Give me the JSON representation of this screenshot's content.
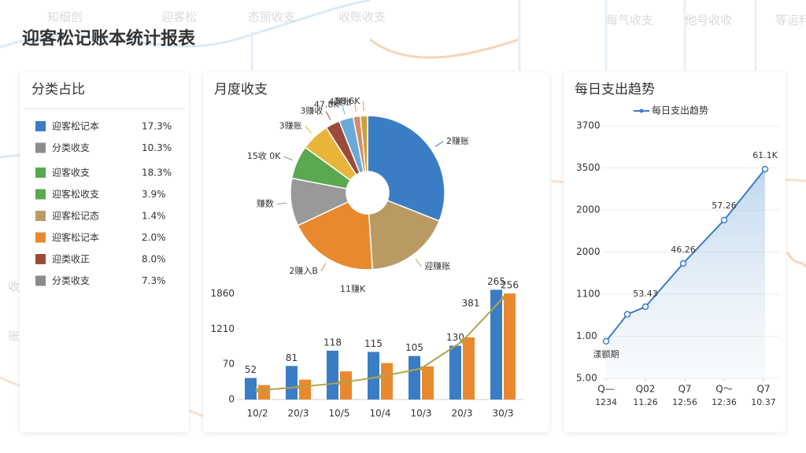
{
  "title": "迎客松记账本统计报表",
  "background_labels": [
    "知细创",
    "迎客松",
    "态丽收支",
    "收账收支",
    "每气收支",
    "他号收收",
    "等运料",
    "收务",
    "账务"
  ],
  "category_panel": {
    "title": "分类占比",
    "rows": [
      {
        "label": "迎客松记本",
        "value": "17.3%",
        "color": "#3b7dc4",
        "value_color": "#444444"
      },
      {
        "label": "分类收支",
        "value": "10.3%",
        "color": "#8c8c8c",
        "value_color": "#444444"
      },
      {
        "label": "迎客收支",
        "value": "18.3%",
        "color": "#5aa84f",
        "value_color": "#3f9a3a"
      },
      {
        "label": "迎客松收支",
        "value": "3.9%",
        "color": "#5aa84f",
        "value_color": "#c0392b"
      },
      {
        "label": "迎客松记态",
        "value": "1.4%",
        "color": "#b89a62",
        "value_color": "#7a8a2a"
      },
      {
        "label": "迎客松记本",
        "value": "2.0%",
        "color": "#e8892f",
        "value_color": "#a08a20"
      },
      {
        "label": "迎类收正",
        "value": "8.0%",
        "color": "#9c4a3a",
        "value_color": "#c0392b"
      },
      {
        "label": "分类收支",
        "value": "7.3%",
        "color": "#8c8c8c",
        "value_color": "#c0392b"
      }
    ]
  },
  "chart_data": [
    {
      "type": "pie",
      "title": "月度收支",
      "categories": [
        "2赚账",
        "迎赚账",
        "2赚入B",
        "赚数",
        "15收 0K",
        "3赚账",
        "3赚收",
        "47.8K",
        "4赚账",
        "58.6K"
      ],
      "values": [
        31,
        18,
        19,
        10,
        7,
        6,
        3,
        3,
        1.5,
        1.5
      ],
      "colors": [
        "#3b7dc4",
        "#b89a62",
        "#e8892f",
        "#999999",
        "#5aa84f",
        "#e8b53a",
        "#9c4a3a",
        "#6aaad8",
        "#d98a6a",
        "#c9a23a"
      ],
      "annotations": [
        "11赚K"
      ]
    },
    {
      "type": "bar",
      "categories": [
        "10/2",
        "20/3",
        "10/5",
        "10/4",
        "10/3",
        "20/3",
        "30/3"
      ],
      "ylim": [
        0,
        300
      ],
      "yticks": [
        0,
        {
          "value": 85,
          "label": "70"
        },
        {
          "value": 170,
          "label": "1210"
        },
        {
          "value": 255,
          "label": "1860"
        }
      ],
      "series": [
        {
          "color": "#3b7dc4",
          "values": [
            52,
            81,
            118,
            115,
            105,
            130,
            265
          ]
        },
        {
          "color": "#e8892f",
          "values": [
            35,
            48,
            68,
            88,
            80,
            150,
            256
          ],
          "value_labels": [
            null,
            null,
            null,
            null,
            null,
            null,
            "256"
          ]
        },
        {
          "type": "line",
          "color": "#b5a24a",
          "values": [
            22,
            30,
            40,
            55,
            75,
            140,
            245
          ]
        }
      ],
      "annotations": [
        "381"
      ]
    },
    {
      "type": "line",
      "title": "每日支出趋势",
      "xlim": [
        0,
        4
      ],
      "ylim": [
        0,
        6
      ],
      "xticks": [
        {
          "value": 0,
          "label": "Q—"
        },
        {
          "value": 1,
          "label": "Q02"
        },
        {
          "value": 2,
          "label": "Q7"
        },
        {
          "value": 3,
          "label": "Q〜"
        },
        {
          "value": 4,
          "label": "Q7"
        }
      ],
      "x_sublabels": [
        "1234",
        "11.26",
        "12:56",
        "12:36",
        "10.37"
      ],
      "yticks": [
        {
          "value": 0,
          "label": "5.00"
        },
        {
          "value": 1,
          "label": "1.00"
        },
        {
          "value": 2,
          "label": "1100"
        },
        {
          "value": 3,
          "label": "2000"
        },
        {
          "value": 4,
          "label": "2000"
        },
        {
          "value": 5,
          "label": "3500"
        },
        {
          "value": 6,
          "label": "3700"
        }
      ],
      "grid": true,
      "series": [
        {
          "name": "每日支出趋势",
          "color": "#3b7dc4",
          "x": [
            0,
            0.54,
            1,
            1.96,
            3,
            4.04
          ],
          "values": [
            0.88,
            1.52,
            1.7,
            2.73,
            3.76,
            4.97
          ]
        }
      ],
      "annotations": [
        "漾额期",
        "53.43",
        "46.26",
        "57.26",
        "61.1K"
      ]
    }
  ]
}
